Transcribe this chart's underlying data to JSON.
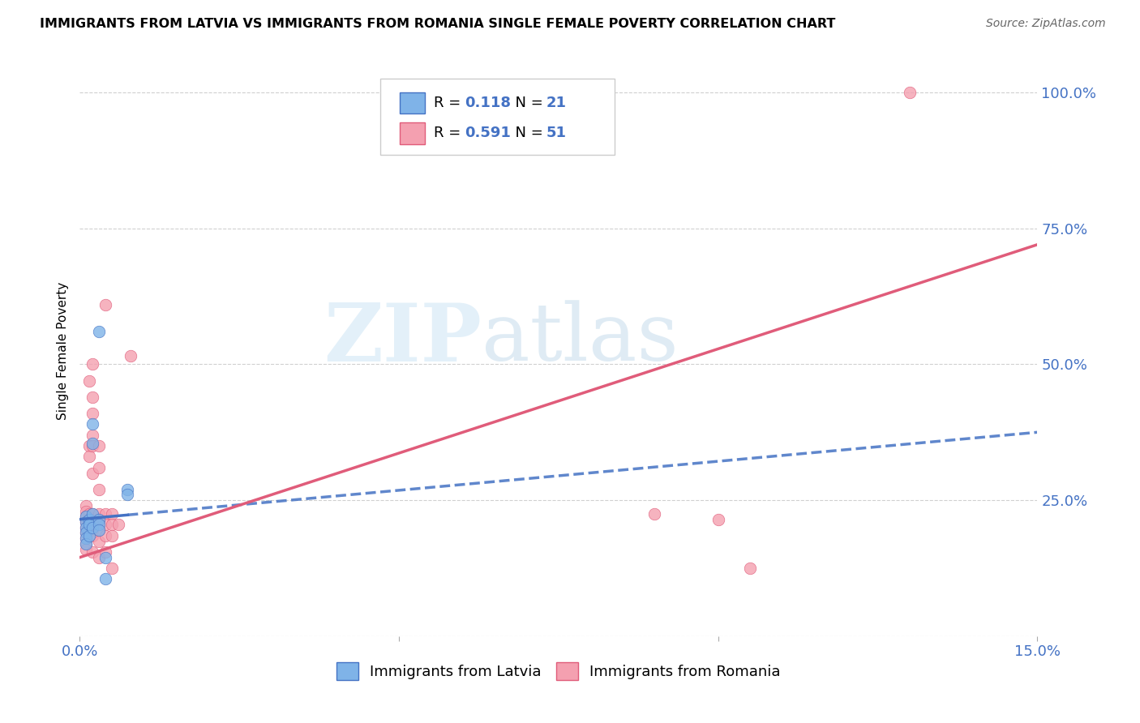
{
  "title": "IMMIGRANTS FROM LATVIA VS IMMIGRANTS FROM ROMANIA SINGLE FEMALE POVERTY CORRELATION CHART",
  "source": "Source: ZipAtlas.com",
  "ylabel_label": "Single Female Poverty",
  "x_min": 0.0,
  "x_max": 0.15,
  "y_min": 0.0,
  "y_max": 1.05,
  "x_ticks": [
    0.0,
    0.05,
    0.1,
    0.15
  ],
  "x_tick_labels": [
    "0.0%",
    "",
    "",
    "15.0%"
  ],
  "y_ticks": [
    0.0,
    0.25,
    0.5,
    0.75,
    1.0
  ],
  "y_tick_labels": [
    "",
    "25.0%",
    "50.0%",
    "75.0%",
    "100.0%"
  ],
  "legend_r_latvia": "0.118",
  "legend_n_latvia": "21",
  "legend_r_romania": "0.591",
  "legend_n_romania": "51",
  "legend_label_latvia": "Immigrants from Latvia",
  "legend_label_romania": "Immigrants from Romania",
  "color_latvia": "#7fb3e8",
  "color_romania": "#f4a0b0",
  "color_latvia_line": "#4472c4",
  "color_romania_line": "#e05c7a",
  "watermark_zip": "ZIP",
  "watermark_atlas": "atlas",
  "latvia_points": [
    [
      0.001,
      0.22
    ],
    [
      0.001,
      0.21
    ],
    [
      0.001,
      0.2
    ],
    [
      0.001,
      0.19
    ],
    [
      0.001,
      0.18
    ],
    [
      0.001,
      0.17
    ],
    [
      0.0015,
      0.215
    ],
    [
      0.0015,
      0.205
    ],
    [
      0.0015,
      0.185
    ],
    [
      0.002,
      0.39
    ],
    [
      0.002,
      0.355
    ],
    [
      0.002,
      0.225
    ],
    [
      0.002,
      0.2
    ],
    [
      0.003,
      0.215
    ],
    [
      0.003,
      0.205
    ],
    [
      0.003,
      0.195
    ],
    [
      0.003,
      0.56
    ],
    [
      0.004,
      0.145
    ],
    [
      0.004,
      0.105
    ],
    [
      0.0075,
      0.27
    ],
    [
      0.0075,
      0.26
    ]
  ],
  "romania_points": [
    [
      0.001,
      0.24
    ],
    [
      0.001,
      0.23
    ],
    [
      0.001,
      0.22
    ],
    [
      0.001,
      0.21
    ],
    [
      0.001,
      0.2
    ],
    [
      0.001,
      0.19
    ],
    [
      0.001,
      0.18
    ],
    [
      0.001,
      0.17
    ],
    [
      0.001,
      0.16
    ],
    [
      0.0015,
      0.47
    ],
    [
      0.0015,
      0.35
    ],
    [
      0.0015,
      0.33
    ],
    [
      0.0015,
      0.225
    ],
    [
      0.0015,
      0.215
    ],
    [
      0.0015,
      0.205
    ],
    [
      0.0015,
      0.195
    ],
    [
      0.002,
      0.5
    ],
    [
      0.002,
      0.44
    ],
    [
      0.002,
      0.41
    ],
    [
      0.002,
      0.37
    ],
    [
      0.002,
      0.35
    ],
    [
      0.002,
      0.3
    ],
    [
      0.002,
      0.225
    ],
    [
      0.002,
      0.215
    ],
    [
      0.002,
      0.205
    ],
    [
      0.002,
      0.195
    ],
    [
      0.002,
      0.185
    ],
    [
      0.002,
      0.155
    ],
    [
      0.003,
      0.35
    ],
    [
      0.003,
      0.31
    ],
    [
      0.003,
      0.27
    ],
    [
      0.003,
      0.225
    ],
    [
      0.003,
      0.215
    ],
    [
      0.003,
      0.195
    ],
    [
      0.003,
      0.175
    ],
    [
      0.003,
      0.145
    ],
    [
      0.004,
      0.61
    ],
    [
      0.004,
      0.225
    ],
    [
      0.004,
      0.205
    ],
    [
      0.004,
      0.185
    ],
    [
      0.004,
      0.155
    ],
    [
      0.005,
      0.225
    ],
    [
      0.005,
      0.205
    ],
    [
      0.005,
      0.185
    ],
    [
      0.005,
      0.125
    ],
    [
      0.006,
      0.205
    ],
    [
      0.008,
      0.515
    ],
    [
      0.09,
      0.225
    ],
    [
      0.13,
      1.0
    ],
    [
      0.1,
      0.215
    ],
    [
      0.105,
      0.125
    ]
  ],
  "latvia_line_x0": 0.0,
  "latvia_line_y0": 0.215,
  "latvia_line_x1": 0.0075,
  "latvia_line_y1": 0.27,
  "latvia_line_xend": 0.15,
  "latvia_line_yend": 0.375,
  "romania_line_x0": 0.0,
  "romania_line_y0": 0.145,
  "romania_line_x1": 0.15,
  "romania_line_y1": 0.72
}
